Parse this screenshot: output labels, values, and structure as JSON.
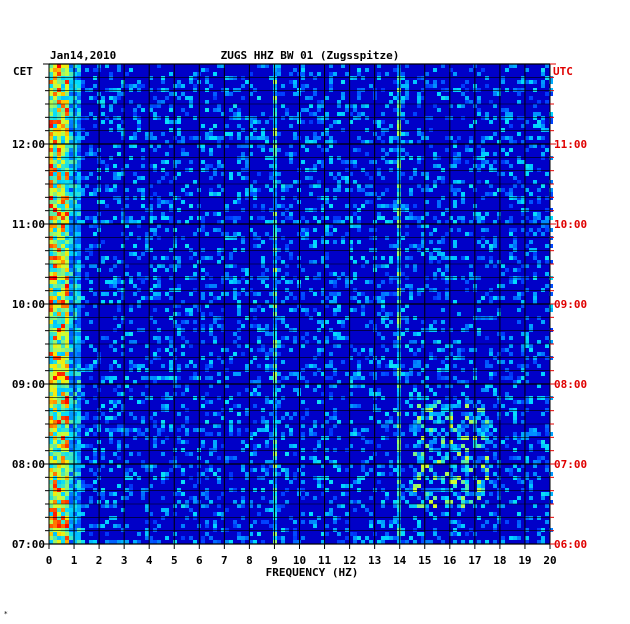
{
  "chart_data": {
    "type": "heatmap",
    "title": "ZUGS HHZ BW 01 (Zugsspitze)",
    "date": "Jan14,2010",
    "xlabel": "FREQUENCY (HZ)",
    "left_axis_label": "CET",
    "right_axis_label": "UTC",
    "xlim": [
      0,
      20
    ],
    "x_ticks": [
      "0",
      "1",
      "2",
      "3",
      "4",
      "5",
      "6",
      "7",
      "8",
      "9",
      "10",
      "11",
      "12",
      "13",
      "14",
      "15",
      "16",
      "17",
      "18",
      "19",
      "20"
    ],
    "left_time_ticks": [
      "07:00",
      "08:00",
      "09:00",
      "10:00",
      "11:00",
      "12:00"
    ],
    "right_time_ticks": [
      "06:00",
      "07:00",
      "08:00",
      "09:00",
      "10:00",
      "11:00"
    ],
    "time_range_cet": [
      "07:00",
      "12:55"
    ],
    "colors": {
      "background": "#0000c8",
      "grid": "#000000",
      "utc_label": "#e00000",
      "text": "#000000",
      "low_power": "#0030ff",
      "mid_power": "#00e0ff",
      "high_power": "#ffff00",
      "max_power": "#ff0000"
    },
    "grid": true,
    "features": [
      {
        "description": "strong broadband energy",
        "frequency_hz": [
          0,
          0.8
        ],
        "time": "all"
      },
      {
        "description": "persistent narrow line",
        "frequency_hz": 9.0,
        "time": "all"
      },
      {
        "description": "persistent narrow line",
        "frequency_hz": 14.0,
        "time": "all"
      },
      {
        "description": "bursts",
        "frequency_hz": [
          14.5,
          17.5
        ],
        "time_cet": [
          "07:30",
          "08:50"
        ]
      }
    ]
  },
  "footer_mark": "*"
}
